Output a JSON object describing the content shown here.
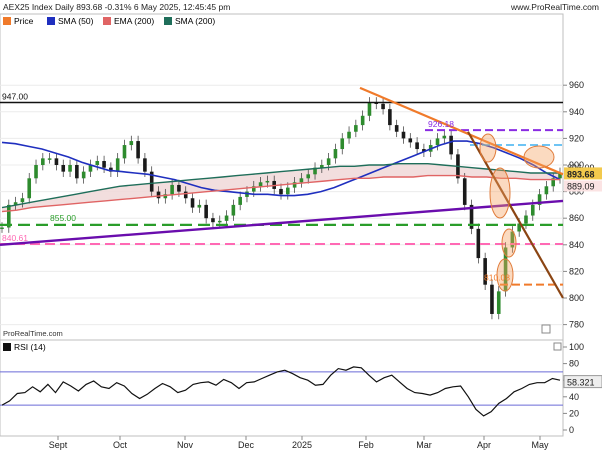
{
  "header": {
    "title": "AEX25 Index Daily 893.68 -0.31% 6 May 2025, 12:45:45 pm",
    "brand": "www.ProRealTime.com"
  },
  "legend": {
    "price": "Price",
    "sma50": "SMA (50)",
    "ema200": "EMA (200)",
    "sma200": "SMA (200)"
  },
  "watermark": "ProRealTime.com",
  "rsi_label": "RSI (14)",
  "colors": {
    "price_up": "#2e8b2e",
    "sma50": "#1f2fbf",
    "ema200": "#e06464",
    "sma200": "#1f6e5a",
    "band_fill": "#f0d8d8",
    "downtrend_orange": "#f07a2a",
    "downtrend_brown": "#8b4513",
    "uptrend_purple": "#6a0dad",
    "support_green": "#2a9d2a",
    "pink_dash": "#ff69b4",
    "purple_dash": "#8a2be2",
    "lightblue_dash": "#3fb0f0",
    "black_line": "#111111",
    "rsi_line": "#111111",
    "rsi_bounds": "#6a6ad8",
    "current_price_box": "#f2c94c"
  },
  "chart_data": {
    "type": "line",
    "ylim": [
      775,
      968
    ],
    "y_ticks": [
      780,
      800,
      820,
      840,
      860,
      880,
      900,
      920,
      940,
      960
    ],
    "x_tick_labels": [
      "Sept",
      "Oct",
      "Nov",
      "Dec",
      "2025",
      "Feb",
      "Mar",
      "Apr",
      "May"
    ],
    "series": [
      {
        "name": "Price",
        "values": [
          853,
          870,
          872,
          875,
          890,
          900,
          905,
          905,
          900,
          895,
          900,
          890,
          895,
          900,
          903,
          898,
          895,
          905,
          915,
          918,
          905,
          895,
          880,
          875,
          878,
          885,
          880,
          875,
          868,
          870,
          860,
          857,
          858,
          862,
          870,
          876,
          880,
          884,
          887,
          888,
          882,
          878,
          883,
          887,
          890,
          893,
          898,
          900,
          905,
          912,
          920,
          925,
          930,
          937,
          947,
          946,
          942,
          930,
          925,
          920,
          917,
          912,
          910,
          915,
          920,
          922,
          908,
          890,
          870,
          852,
          830,
          810,
          788,
          805,
          838,
          850,
          856,
          862,
          870,
          878,
          884,
          890,
          894
        ]
      },
      {
        "name": "SMA (50)",
        "values": [
          917,
          916,
          914,
          912,
          909,
          906,
          902,
          899,
          896,
          895,
          894,
          893,
          891,
          889,
          886,
          883,
          881,
          880,
          879,
          878,
          878,
          877,
          877,
          878,
          880,
          883,
          887,
          891,
          895,
          899,
          903,
          907,
          911,
          915,
          918,
          918,
          916,
          913,
          909,
          905,
          900,
          894,
          889
        ]
      },
      {
        "name": "EMA (200)",
        "values": [
          865,
          866,
          868,
          869,
          870,
          871,
          872,
          873,
          874,
          875,
          876,
          877,
          878,
          879,
          880,
          881,
          882,
          883,
          884,
          885,
          886,
          887,
          888,
          889,
          890,
          890,
          891,
          891,
          891,
          892,
          892,
          892,
          891,
          891,
          890,
          890,
          889,
          889,
          889
        ]
      },
      {
        "name": "SMA (200)",
        "values": [
          868,
          870,
          872,
          874,
          876,
          878,
          880,
          882,
          884,
          885,
          886,
          887,
          888,
          889,
          890,
          891,
          892,
          893,
          894,
          895,
          896,
          897,
          898,
          899,
          899,
          900,
          900,
          901,
          901,
          901,
          900,
          899,
          898,
          897,
          896,
          895,
          894,
          894,
          894
        ]
      }
    ],
    "price_labels": [
      {
        "value": 947.0,
        "text": "947.00"
      },
      {
        "value": 926.18,
        "text": "926.18"
      },
      {
        "value": 896.09,
        "text": "896.09"
      },
      {
        "value": 893.68,
        "text": "893.68"
      },
      {
        "value": 889.09,
        "text": "889.09"
      },
      {
        "value": 855.0,
        "text": "855.00"
      },
      {
        "value": 840.61,
        "text": "840.61"
      },
      {
        "value": 810.08,
        "text": "810.08"
      }
    ],
    "rsi": {
      "ylim": [
        0,
        100
      ],
      "y_ticks": [
        0,
        20,
        40,
        60,
        80,
        100
      ],
      "upper": 70,
      "lower": 30,
      "current": "58.321",
      "values": [
        30,
        35,
        44,
        45,
        52,
        46,
        55,
        45,
        58,
        53,
        47,
        55,
        59,
        52,
        50,
        57,
        53,
        44,
        38,
        43,
        50,
        56,
        52,
        45,
        48,
        55,
        57,
        58,
        54,
        61,
        57,
        50,
        57,
        58,
        62,
        66,
        70,
        72,
        68,
        63,
        60,
        54,
        55,
        66,
        74,
        72,
        76,
        75,
        66,
        58,
        63,
        66,
        58,
        50,
        45,
        44,
        42,
        45,
        50,
        52,
        53,
        40,
        25,
        17,
        22,
        32,
        38,
        46,
        50,
        55,
        57,
        57,
        62,
        60
      ]
    }
  }
}
